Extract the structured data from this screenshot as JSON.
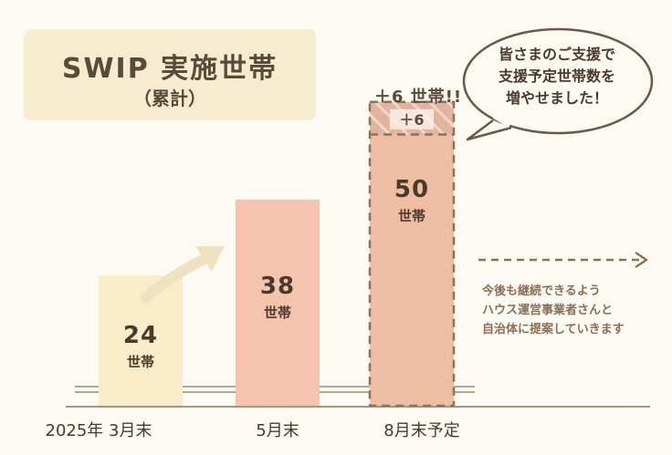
{
  "title": "SWIP 実施世帯",
  "subtitle": "（累計）",
  "speech_bubble": "皆さまのご支援で\n支援予定世帯数を\n増やせました！",
  "increase_note": "＋6 世帯!!",
  "future_note": "今後も継続できるよう\nハウス運営事業者さんと\n自治体に提案していきます",
  "colors": {
    "bar1": "#faecc8",
    "bar2": "#f6c4ae",
    "bar3": "#efbca4",
    "dash": "#8a7358",
    "axis": "#8a7358",
    "hatch": "#e2b4a0"
  },
  "chart_data": {
    "type": "bar",
    "categories": [
      "2025年 3月末",
      "5月末",
      "8月末予定"
    ],
    "values": [
      24,
      38,
      56
    ],
    "segments": [
      {
        "base": 24,
        "label": "24",
        "unit": "世帯"
      },
      {
        "base": 38,
        "label": "38",
        "unit": "世帯"
      },
      {
        "base": 50,
        "added": 6,
        "label": "50",
        "unit": "世帯",
        "added_label": "＋6"
      }
    ]
  }
}
